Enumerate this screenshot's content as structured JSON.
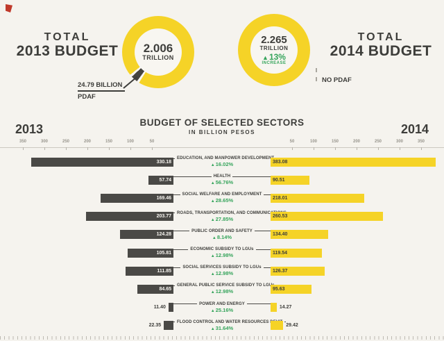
{
  "colors": {
    "yellow": "#f5d327",
    "dark_gray": "#4a4946",
    "green": "#35a45b",
    "background": "#f5f3ee",
    "text": "#3d3d3a",
    "logo_red": "#c0392b"
  },
  "header": {
    "left_total": {
      "line1": "TOTAL",
      "line2": "2013 BUDGET"
    },
    "right_total": {
      "line1": "TOTAL",
      "line2": "2014 BUDGET"
    },
    "donut_2013": {
      "value": "2.006",
      "unit": "TRILLION"
    },
    "donut_2014": {
      "value": "2.265",
      "unit": "TRILLION",
      "increase_pct": "13%",
      "increase_label": "INCREASE"
    },
    "pdaf": {
      "line1": "24.79 BILLION",
      "line2": "PDAF"
    },
    "no_pdaf": "NO PDAF"
  },
  "chart_data": {
    "type": "bar",
    "subtype": "diverging-tornado",
    "title": "BUDGET OF SELECTED SECTORS",
    "subtitle": "IN BILLION PESOS",
    "left_year": "2013",
    "right_year": "2014",
    "unit": "billion pesos",
    "axis_ticks": [
      350,
      300,
      250,
      200,
      150,
      100,
      50
    ],
    "axis_range": [
      0,
      350
    ],
    "legend": {
      "left_series": "2013 budget (dark gray)",
      "right_series": "2014 budget (yellow)"
    },
    "rows": [
      {
        "sector": "EDUCATION, AND MANPOWER DEVELOPMENT",
        "v2013": "330.18",
        "v2014": "383.08",
        "change": "16.02%"
      },
      {
        "sector": "HEALTH",
        "v2013": "57.74",
        "v2014": "90.51",
        "change": "56.76%"
      },
      {
        "sector": "SOCIAL WELFARE AND EMPLOYMENT",
        "v2013": "169.46",
        "v2014": "218.01",
        "change": "28.65%"
      },
      {
        "sector": "ROADS, TRANSPORTATION, AND COMMUNICATIONS",
        "v2013": "203.77",
        "v2014": "260.53",
        "change": "27.85%"
      },
      {
        "sector": "PUBLIC ORDER AND SAFETY",
        "v2013": "124.28",
        "v2014": "134.40",
        "change": "8.14%"
      },
      {
        "sector": "ECONOMIC SUBSIDY TO LGUs",
        "v2013": "105.81",
        "v2014": "119.54",
        "change": "12.98%"
      },
      {
        "sector": "SOCIAL SERVICES SUBSIDY TO LGUs",
        "v2013": "111.85",
        "v2014": "126.37",
        "change": "12.98%"
      },
      {
        "sector": "GENERAL PUBLIC SERVICE SUBSIDY TO LGUs",
        "v2013": "84.65",
        "v2014": "95.63",
        "change": "12.98%"
      },
      {
        "sector": "POWER AND ENERGY",
        "v2013": "11.40",
        "v2014": "14.27",
        "change": "25.16%"
      },
      {
        "sector": "FLOOD CONTROL AND WATER RESOURCES DEV'T",
        "v2013": "22.35",
        "v2014": "29.42",
        "change": "31.64%"
      }
    ]
  }
}
